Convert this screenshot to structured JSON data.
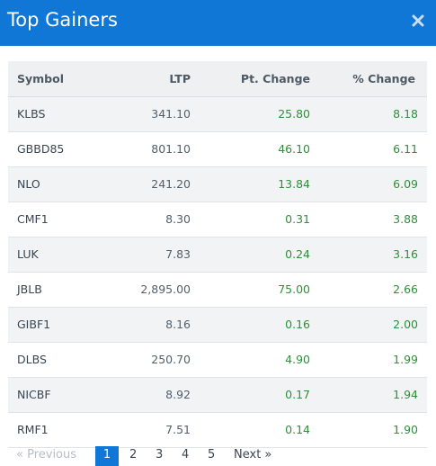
{
  "header": {
    "title": "Top Gainers",
    "close_label": "×"
  },
  "table": {
    "columns": [
      "Symbol",
      "LTP",
      "Pt. Change",
      "% Change"
    ],
    "rows": [
      {
        "symbol": "KLBS",
        "ltp": "341.10",
        "pt_change": "25.80",
        "pct_change": "8.18"
      },
      {
        "symbol": "GBBD85",
        "ltp": "801.10",
        "pt_change": "46.10",
        "pct_change": "6.11"
      },
      {
        "symbol": "NLO",
        "ltp": "241.20",
        "pt_change": "13.84",
        "pct_change": "6.09"
      },
      {
        "symbol": "CMF1",
        "ltp": "8.30",
        "pt_change": "0.31",
        "pct_change": "3.88"
      },
      {
        "symbol": "LUK",
        "ltp": "7.83",
        "pt_change": "0.24",
        "pct_change": "3.16"
      },
      {
        "symbol": "JBLB",
        "ltp": "2,895.00",
        "pt_change": "75.00",
        "pct_change": "2.66"
      },
      {
        "symbol": "GIBF1",
        "ltp": "8.16",
        "pt_change": "0.16",
        "pct_change": "2.00"
      },
      {
        "symbol": "DLBS",
        "ltp": "250.70",
        "pt_change": "4.90",
        "pct_change": "1.99"
      },
      {
        "symbol": "NICBF",
        "ltp": "8.92",
        "pt_change": "0.17",
        "pct_change": "1.94"
      },
      {
        "symbol": "RMF1",
        "ltp": "7.51",
        "pt_change": "0.14",
        "pct_change": "1.90"
      }
    ]
  },
  "pagination": {
    "previous": "« Previous",
    "pages": [
      "1",
      "2",
      "3",
      "4",
      "5"
    ],
    "active_page": "1",
    "next": "Next »"
  },
  "colors": {
    "header_bg": "#1177d6",
    "gain_text": "#2f8f3b"
  }
}
